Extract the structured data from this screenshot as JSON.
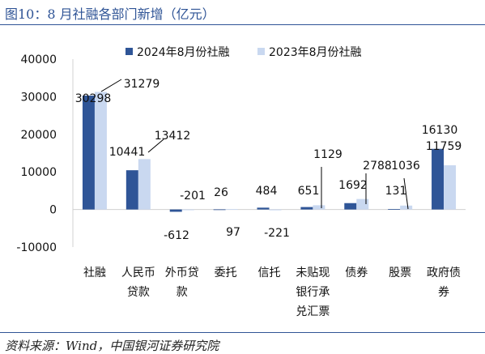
{
  "title": "图10：8 月社融各部门新增（亿元）",
  "source": "资料来源：Wind，中国银河证券研究院",
  "colors": {
    "series_2024": "#2F5597",
    "series_2023": "#C9D8F0",
    "accent": "#2F5496"
  },
  "chart_data": {
    "type": "bar",
    "categories": [
      [
        "社融"
      ],
      [
        "人民币",
        "贷款"
      ],
      [
        "外币贷",
        "款"
      ],
      [
        "委托"
      ],
      [
        "信托"
      ],
      [
        "未贴现",
        "银行承",
        "兑汇票"
      ],
      [
        "债券"
      ],
      [
        "股票"
      ],
      [
        "政府债",
        "券"
      ]
    ],
    "series": [
      {
        "name": "2024年8月份社融",
        "values": [
          30298,
          10441,
          -612,
          26,
          484,
          651,
          1692,
          131,
          16130
        ]
      },
      {
        "name": "2023年8月份社融",
        "values": [
          31279,
          13412,
          -201,
          97,
          -221,
          1129,
          2788,
          1036,
          11759
        ]
      }
    ],
    "value_labels": [
      [
        "30298",
        "10441",
        "-612",
        "26",
        "484",
        "651",
        "1692",
        "131",
        "16130"
      ],
      [
        "31279",
        "13412",
        "-201",
        "97",
        "-221",
        "1129",
        "2788",
        "1036",
        "11759"
      ]
    ],
    "yticks": [
      "40000",
      "30000",
      "20000",
      "10000",
      "0",
      "-10000"
    ],
    "ylim": [
      -10000,
      40000
    ],
    "legend_position": "top",
    "grid": false,
    "xlabel": "",
    "ylabel": ""
  }
}
